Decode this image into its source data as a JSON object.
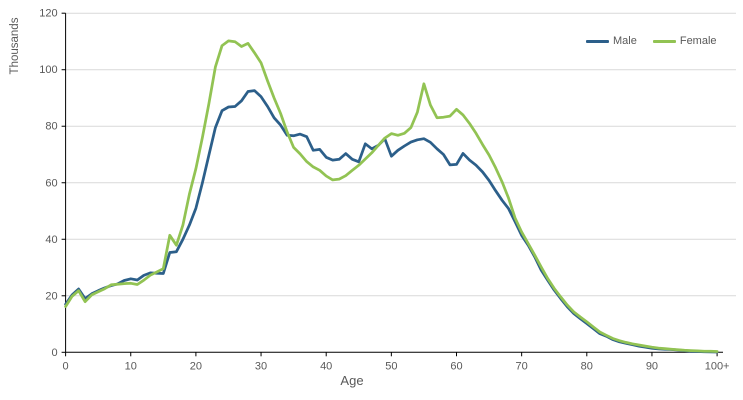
{
  "chart_data": {
    "type": "line",
    "title": "",
    "ylabel": "Thousands",
    "xlabel": "Age",
    "ylim": [
      0,
      120
    ],
    "grid": "horizontal",
    "legend_position": "top-right",
    "colors": {
      "axis": "#000000",
      "grid": "#d9d9d9",
      "labels": "#595959"
    },
    "y_ticks": [
      0,
      20,
      40,
      60,
      80,
      100,
      120
    ],
    "x_tick_ages": [
      0,
      10,
      20,
      30,
      40,
      50,
      60,
      70,
      80,
      90,
      100
    ],
    "x_tick_labels": [
      "0",
      "10",
      "20",
      "30",
      "40",
      "50",
      "60",
      "70",
      "80",
      "90",
      "100+"
    ],
    "x": [
      0,
      1,
      2,
      3,
      4,
      5,
      6,
      7,
      8,
      9,
      10,
      11,
      12,
      13,
      14,
      15,
      16,
      17,
      18,
      19,
      20,
      21,
      22,
      23,
      24,
      25,
      26,
      27,
      28,
      29,
      30,
      31,
      32,
      33,
      34,
      35,
      36,
      37,
      38,
      39,
      40,
      41,
      42,
      43,
      44,
      45,
      46,
      47,
      48,
      49,
      50,
      51,
      52,
      53,
      54,
      55,
      56,
      57,
      58,
      59,
      60,
      61,
      62,
      63,
      64,
      65,
      66,
      67,
      68,
      69,
      70,
      71,
      72,
      73,
      74,
      75,
      76,
      77,
      78,
      79,
      80,
      81,
      82,
      83,
      84,
      85,
      86,
      87,
      88,
      89,
      90,
      91,
      92,
      93,
      94,
      95,
      96,
      97,
      98,
      99,
      100
    ],
    "series": [
      {
        "name": "Male",
        "color": "#2c5f8a",
        "values": [
          17,
          20.3,
          22.4,
          19,
          20.7,
          21.8,
          22.8,
          23.6,
          24.2,
          25.4,
          26,
          25.6,
          27.2,
          28.1,
          28,
          27.9,
          35.3,
          35.6,
          40,
          45,
          51,
          60,
          69.8,
          79.5,
          85.5,
          86.8,
          87,
          89,
          92.3,
          92.6,
          90.5,
          87,
          83,
          80.4,
          76.8,
          76.6,
          77.2,
          76.3,
          71.5,
          71.8,
          69,
          68,
          68.3,
          70.3,
          68.3,
          67.4,
          73.8,
          72,
          73.2,
          75.6,
          69.4,
          71.5,
          73,
          74.4,
          75.2,
          75.6,
          74.3,
          72,
          70,
          66.3,
          66.5,
          70.4,
          68,
          66.2,
          63.8,
          60.8,
          57.2,
          53.8,
          50.8,
          46.2,
          41.4,
          37.9,
          33.8,
          29.1,
          25.5,
          22,
          19,
          16.1,
          13.7,
          11.9,
          10.2,
          8.4,
          6.6,
          5.7,
          4.5,
          3.7,
          3.2,
          2.7,
          2.2,
          1.8,
          1.4,
          1.2,
          1.1,
          1,
          0.8,
          0.6,
          0.4,
          0.3,
          0.2,
          0.15,
          0.1
        ]
      },
      {
        "name": "Female",
        "color": "#92c353",
        "values": [
          16.2,
          19.8,
          21.8,
          17.9,
          20.3,
          21.4,
          22.5,
          23.9,
          24.1,
          24.3,
          24.4,
          24,
          25.5,
          27.3,
          28.4,
          29.6,
          41.4,
          37.9,
          45,
          56,
          65,
          76,
          88,
          101,
          108.5,
          110.2,
          109.9,
          108.2,
          109.3,
          106,
          102.5,
          96,
          90,
          84.5,
          78,
          72.5,
          70.2,
          67.5,
          65.6,
          64.4,
          62.4,
          61,
          61.3,
          62.5,
          64.4,
          66.2,
          68.4,
          70.6,
          73.2,
          75.8,
          77.4,
          76.8,
          77.5,
          79.5,
          85,
          95,
          87.5,
          83,
          83.2,
          83.6,
          86,
          84,
          81,
          77.5,
          73.5,
          69.8,
          65.3,
          60.3,
          54.5,
          47.5,
          42.6,
          38.5,
          34.4,
          30.2,
          26.1,
          22.6,
          19.6,
          16.7,
          14.3,
          12.5,
          10.8,
          9,
          7.2,
          6,
          4.9,
          4.1,
          3.5,
          3,
          2.6,
          2.2,
          1.8,
          1.5,
          1.3,
          1.1,
          0.9,
          0.7,
          0.6,
          0.5,
          0.4,
          0.35,
          0.3
        ]
      }
    ]
  }
}
